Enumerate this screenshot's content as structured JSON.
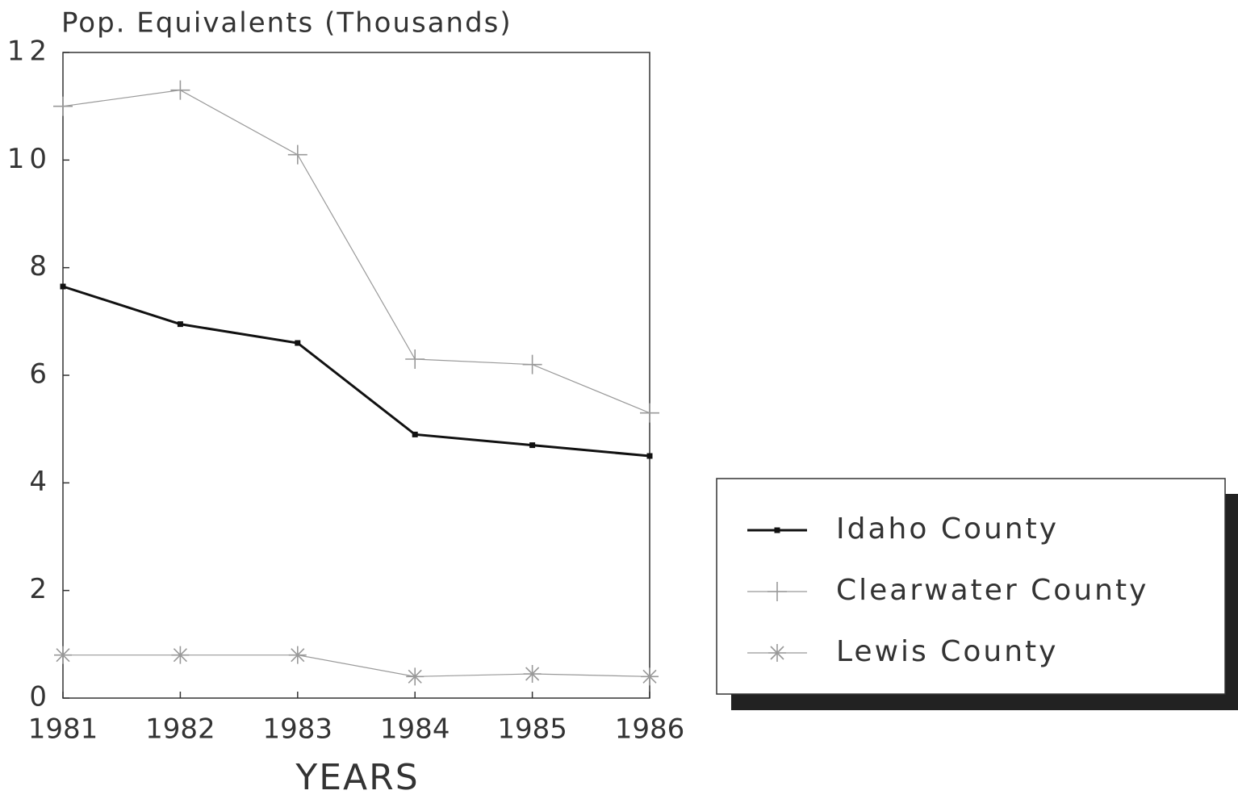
{
  "chart_data": {
    "type": "line",
    "ylabel": "Pop. Equivalents (Thousands)",
    "xlabel": "YEARS",
    "x": [
      1981,
      1982,
      1983,
      1984,
      1985,
      1986
    ],
    "xlim": [
      1981,
      1986
    ],
    "xticks": [
      1981,
      1982,
      1983,
      1984,
      1985,
      1986
    ],
    "ylim": [
      0,
      12
    ],
    "yticks": [
      0,
      2,
      4,
      6,
      8,
      10,
      12
    ],
    "legend": "right",
    "series": [
      {
        "name": "Idaho County",
        "color": "#111111",
        "marker": "square",
        "values": [
          7.65,
          6.95,
          6.6,
          4.9,
          4.7,
          4.5
        ]
      },
      {
        "name": "Clearwater County",
        "color": "#999999",
        "marker": "plus",
        "values": [
          11.0,
          11.3,
          10.1,
          6.3,
          6.2,
          5.3
        ]
      },
      {
        "name": "Lewis County",
        "color": "#999999",
        "marker": "asterisk",
        "values": [
          0.8,
          0.8,
          0.8,
          0.4,
          0.45,
          0.4
        ]
      }
    ]
  }
}
